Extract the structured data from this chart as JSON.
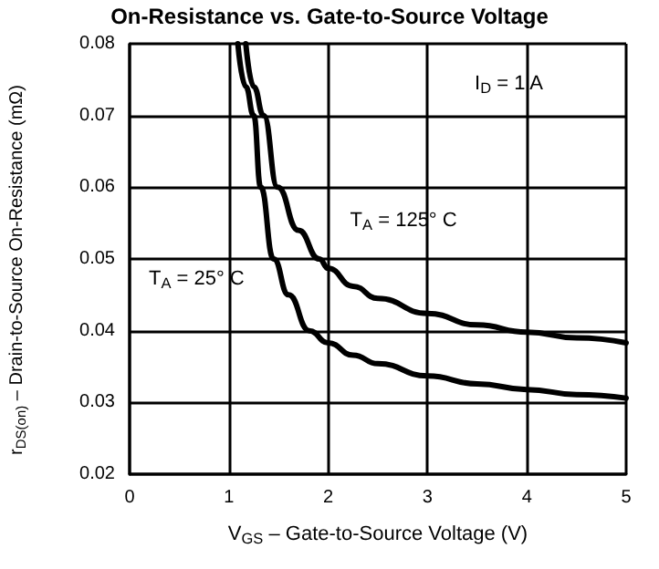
{
  "chart_data": {
    "type": "line",
    "title": "On-Resistance vs. Gate-to-Source Voltage",
    "xlabel": "V$_{GS}$ – Gate-to-Source Voltage (V)",
    "ylabel": "r$_{DS(on)}$ – Drain-to-Source On-Resistance (mΩ)",
    "series": [
      {
        "name": "T$_{A}$ = 125° C",
        "color": "#000000",
        "x": [
          1.17,
          1.25,
          1.35,
          1.49,
          1.7,
          1.91,
          2.0,
          2.25,
          2.5,
          3.0,
          3.5,
          4.0,
          4.5,
          5.0
        ],
        "values": [
          0.08,
          0.074,
          0.07,
          0.06,
          0.054,
          0.05,
          0.0487,
          0.0462,
          0.0445,
          0.0424,
          0.0408,
          0.0398,
          0.039,
          0.0383
        ]
      },
      {
        "name": "T$_{A}$ = 25° C",
        "color": "#000000",
        "x": [
          1.09,
          1.17,
          1.25,
          1.32,
          1.45,
          1.6,
          1.81,
          2.0,
          2.25,
          2.5,
          3.0,
          3.5,
          4.0,
          4.5,
          5.0
        ],
        "values": [
          0.08,
          0.074,
          0.07,
          0.06,
          0.05,
          0.045,
          0.04,
          0.0383,
          0.0366,
          0.0354,
          0.0337,
          0.0326,
          0.0318,
          0.0311,
          0.0306
        ]
      }
    ],
    "annotations": [
      "I$_{D}$ = 1  A"
    ],
    "xlim": [
      0,
      5
    ],
    "xticks": [
      0,
      1,
      2,
      3,
      4,
      5
    ],
    "ylim": [
      0.02,
      0.08
    ],
    "yticks": [
      0.02,
      0.03,
      0.04,
      0.05,
      0.06,
      0.07,
      0.08
    ],
    "grid": true,
    "marker": "none",
    "line_style": "solid"
  }
}
